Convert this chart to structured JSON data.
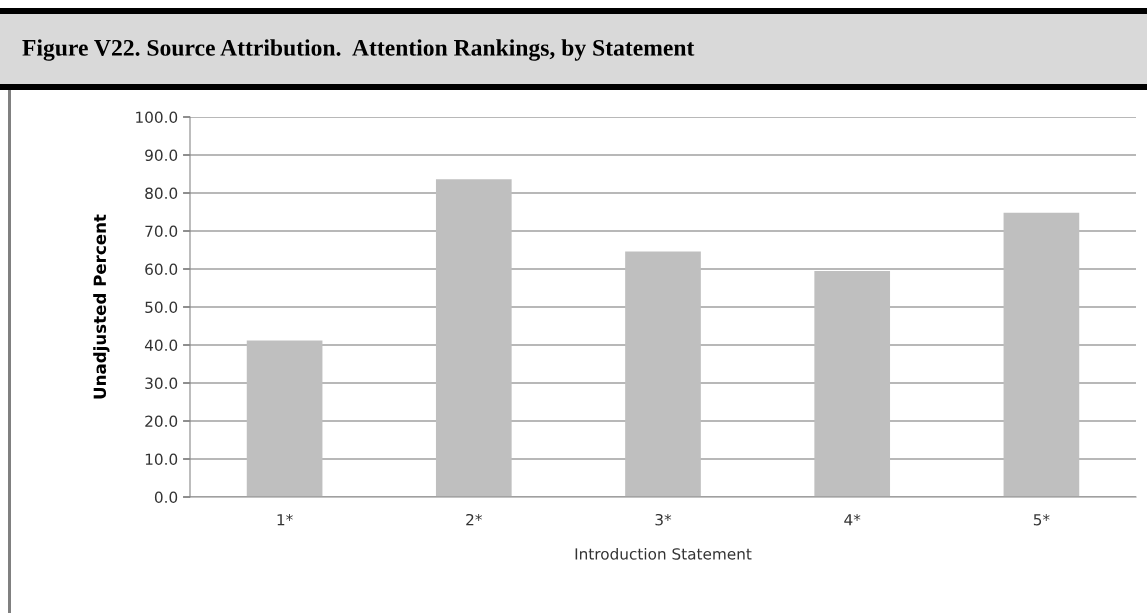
{
  "chart_data": {
    "type": "bar",
    "title": "Figure V22. Source Attribution.  Attention Rankings, by Statement",
    "xlabel": "Introduction Statement",
    "ylabel": "Unadjusted Percent",
    "categories": [
      "1*",
      "2*",
      "3*",
      "4*",
      "5*"
    ],
    "values": [
      41.2,
      83.6,
      64.6,
      59.5,
      74.8
    ],
    "color": "#bfbfbf",
    "ylim": [
      0,
      100
    ],
    "yticks": [
      {
        "value": 0,
        "label": "0.0"
      },
      {
        "value": 10,
        "label": "10.0"
      },
      {
        "value": 20,
        "label": "20.0"
      },
      {
        "value": 30,
        "label": "30.0"
      },
      {
        "value": 40,
        "label": "40.0"
      },
      {
        "value": 50,
        "label": "50.0"
      },
      {
        "value": 60,
        "label": "60.0"
      },
      {
        "value": 70,
        "label": "70.0"
      },
      {
        "value": 80,
        "label": "80.0"
      },
      {
        "value": 90,
        "label": "90.0"
      },
      {
        "value": 100,
        "label": "100.0"
      }
    ],
    "grid": "y"
  }
}
